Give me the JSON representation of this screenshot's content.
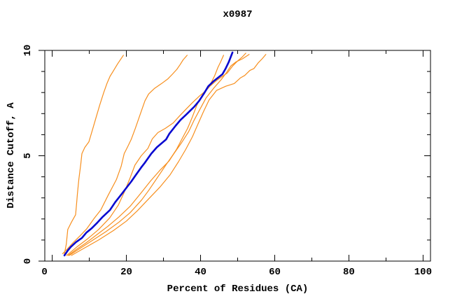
{
  "title": "x0987",
  "axes": {
    "x_tick_labels": [
      "0",
      "20",
      "40",
      "60",
      "80",
      "100"
    ],
    "y_tick_labels": [
      "0",
      "5",
      "10"
    ]
  },
  "colors": {
    "orange_line": "#f78f1e",
    "blue_line": "#0a0ad0",
    "axis": "#000000",
    "background": "#ffffff"
  },
  "chart_data": {
    "type": "line",
    "title": "x0987",
    "xlabel": "Percent of Residues (CA)",
    "ylabel": "Distance Cutoff, A",
    "xlim": [
      -2,
      102
    ],
    "ylim": [
      0,
      10
    ],
    "x_major_ticks": [
      0,
      20,
      40,
      60,
      80,
      100
    ],
    "x_minor_ticks": [
      10,
      30,
      50,
      70,
      90
    ],
    "y_major_ticks": [
      0,
      5,
      10
    ],
    "y_minor_ticks": [
      1,
      2,
      3,
      4,
      6,
      7,
      8,
      9
    ],
    "grid": false,
    "legend": "none",
    "series": [
      {
        "name": "orange-line-1",
        "color": "#f78f1e",
        "width": 1.2,
        "points": [
          [
            3.2,
            0.27
          ],
          [
            3.8,
            0.8
          ],
          [
            4.2,
            1.5
          ],
          [
            5.2,
            1.85
          ],
          [
            6.3,
            2.2
          ],
          [
            6.6,
            2.8
          ],
          [
            6.8,
            3.2
          ],
          [
            7.2,
            3.9
          ],
          [
            7.7,
            4.6
          ],
          [
            8.0,
            5.1
          ],
          [
            8.8,
            5.4
          ],
          [
            9.9,
            5.66
          ],
          [
            10.8,
            6.2
          ],
          [
            11.8,
            6.8
          ],
          [
            12.8,
            7.4
          ],
          [
            13.9,
            8.0
          ],
          [
            14.8,
            8.45
          ],
          [
            15.6,
            8.77
          ],
          [
            16.4,
            9.0
          ],
          [
            17.6,
            9.35
          ],
          [
            19.2,
            9.77
          ]
        ]
      },
      {
        "name": "orange-line-2",
        "color": "#f78f1e",
        "width": 1.2,
        "points": [
          [
            2.8,
            0.35
          ],
          [
            4.2,
            0.6
          ],
          [
            5.6,
            0.87
          ],
          [
            7.5,
            1.2
          ],
          [
            9.3,
            1.53
          ],
          [
            11.2,
            2.0
          ],
          [
            13.1,
            2.43
          ],
          [
            15.0,
            3.1
          ],
          [
            17.3,
            3.87
          ],
          [
            18.6,
            4.5
          ],
          [
            19.4,
            5.1
          ],
          [
            20.4,
            5.45
          ],
          [
            21.3,
            5.77
          ],
          [
            22.4,
            6.3
          ],
          [
            23.6,
            6.9
          ],
          [
            25.0,
            7.6
          ],
          [
            26.0,
            7.93
          ],
          [
            27.6,
            8.2
          ],
          [
            29.5,
            8.43
          ],
          [
            31.2,
            8.65
          ],
          [
            32.4,
            8.87
          ],
          [
            33.6,
            9.1
          ],
          [
            34.5,
            9.33
          ],
          [
            35.3,
            9.55
          ],
          [
            36.4,
            9.77
          ]
        ]
      },
      {
        "name": "orange-line-3",
        "color": "#f78f1e",
        "width": 1.2,
        "points": [
          [
            3.9,
            0.27
          ],
          [
            6.5,
            0.65
          ],
          [
            9.5,
            1.05
          ],
          [
            12.5,
            1.5
          ],
          [
            15.5,
            2.05
          ],
          [
            17.8,
            2.65
          ],
          [
            19.5,
            3.3
          ],
          [
            21.0,
            3.95
          ],
          [
            22.3,
            4.55
          ],
          [
            24.0,
            5.0
          ],
          [
            25.8,
            5.35
          ],
          [
            27.0,
            5.8
          ],
          [
            28.5,
            6.1
          ],
          [
            30.5,
            6.3
          ],
          [
            32.6,
            6.55
          ],
          [
            34.4,
            6.9
          ],
          [
            36.3,
            7.25
          ],
          [
            38.0,
            7.55
          ],
          [
            39.8,
            7.85
          ],
          [
            41.5,
            8.1
          ],
          [
            42.8,
            8.45
          ],
          [
            43.8,
            8.8
          ],
          [
            44.7,
            9.2
          ],
          [
            45.4,
            9.45
          ],
          [
            46.2,
            9.77
          ]
        ]
      },
      {
        "name": "orange-line-4",
        "color": "#f78f1e",
        "width": 1.2,
        "points": [
          [
            4.3,
            0.27
          ],
          [
            6.5,
            0.55
          ],
          [
            9.0,
            0.85
          ],
          [
            12.0,
            1.25
          ],
          [
            15.0,
            1.65
          ],
          [
            18.0,
            2.1
          ],
          [
            21.0,
            2.6
          ],
          [
            24.0,
            3.25
          ],
          [
            26.5,
            3.8
          ],
          [
            29.0,
            4.3
          ],
          [
            31.5,
            4.75
          ],
          [
            33.5,
            5.3
          ],
          [
            35.0,
            5.8
          ],
          [
            36.5,
            6.3
          ],
          [
            37.8,
            6.85
          ],
          [
            39.0,
            7.4
          ],
          [
            40.5,
            7.9
          ],
          [
            42.5,
            8.3
          ],
          [
            44.5,
            8.6
          ],
          [
            47.2,
            8.93
          ],
          [
            48.6,
            9.25
          ],
          [
            50.0,
            9.5
          ],
          [
            51.2,
            9.68
          ],
          [
            52.2,
            9.87
          ]
        ]
      },
      {
        "name": "orange-line-5",
        "color": "#f78f1e",
        "width": 1.2,
        "points": [
          [
            4.6,
            0.27
          ],
          [
            7.5,
            0.6
          ],
          [
            11.0,
            1.0
          ],
          [
            14.5,
            1.4
          ],
          [
            18.0,
            1.85
          ],
          [
            21.0,
            2.3
          ],
          [
            24.1,
            2.9
          ],
          [
            26.0,
            3.35
          ],
          [
            28.5,
            4.0
          ],
          [
            30.8,
            4.6
          ],
          [
            32.8,
            5.1
          ],
          [
            34.8,
            5.6
          ],
          [
            36.8,
            6.15
          ],
          [
            38.3,
            6.7
          ],
          [
            39.8,
            7.2
          ],
          [
            41.5,
            7.75
          ],
          [
            43.5,
            8.2
          ],
          [
            45.5,
            8.6
          ],
          [
            47.0,
            8.95
          ],
          [
            48.2,
            9.27
          ],
          [
            49.5,
            9.45
          ],
          [
            51.3,
            9.6
          ],
          [
            53.1,
            9.81
          ]
        ]
      },
      {
        "name": "orange-line-6",
        "color": "#f78f1e",
        "width": 1.2,
        "points": [
          [
            5.2,
            0.27
          ],
          [
            8.5,
            0.6
          ],
          [
            12.5,
            1.0
          ],
          [
            16.5,
            1.45
          ],
          [
            20.0,
            1.9
          ],
          [
            23.0,
            2.4
          ],
          [
            26.0,
            2.95
          ],
          [
            29.0,
            3.5
          ],
          [
            31.8,
            4.1
          ],
          [
            34.0,
            4.7
          ],
          [
            36.0,
            5.3
          ],
          [
            37.8,
            5.9
          ],
          [
            39.3,
            6.5
          ],
          [
            40.8,
            7.1
          ],
          [
            42.3,
            7.65
          ],
          [
            44.3,
            8.1
          ],
          [
            46.8,
            8.3
          ],
          [
            49.1,
            8.43
          ],
          [
            50.8,
            8.7
          ],
          [
            51.9,
            8.81
          ],
          [
            53.3,
            9.05
          ],
          [
            54.4,
            9.14
          ],
          [
            55.5,
            9.4
          ],
          [
            56.6,
            9.6
          ],
          [
            57.6,
            9.81
          ]
        ]
      },
      {
        "name": "blue-line",
        "color": "#0a0ad0",
        "width": 2.6,
        "points": [
          [
            3.3,
            0.27
          ],
          [
            4.2,
            0.5
          ],
          [
            5.0,
            0.67
          ],
          [
            6.4,
            0.9
          ],
          [
            8.0,
            1.1
          ],
          [
            9.2,
            1.35
          ],
          [
            10.6,
            1.55
          ],
          [
            12.2,
            1.83
          ],
          [
            13.6,
            2.1
          ],
          [
            15.6,
            2.43
          ],
          [
            17.0,
            2.8
          ],
          [
            18.8,
            3.2
          ],
          [
            20.1,
            3.5
          ],
          [
            21.3,
            3.77
          ],
          [
            22.6,
            4.1
          ],
          [
            24.0,
            4.45
          ],
          [
            25.0,
            4.67
          ],
          [
            26.7,
            5.1
          ],
          [
            28.2,
            5.4
          ],
          [
            30.7,
            5.77
          ],
          [
            31.6,
            6.05
          ],
          [
            33.3,
            6.43
          ],
          [
            34.6,
            6.7
          ],
          [
            36.1,
            6.95
          ],
          [
            38.3,
            7.33
          ],
          [
            39.6,
            7.6
          ],
          [
            40.9,
            7.95
          ],
          [
            42.1,
            8.3
          ],
          [
            43.6,
            8.55
          ],
          [
            45.9,
            8.87
          ],
          [
            46.8,
            9.15
          ],
          [
            47.6,
            9.45
          ],
          [
            48.6,
            9.9
          ]
        ]
      }
    ]
  }
}
